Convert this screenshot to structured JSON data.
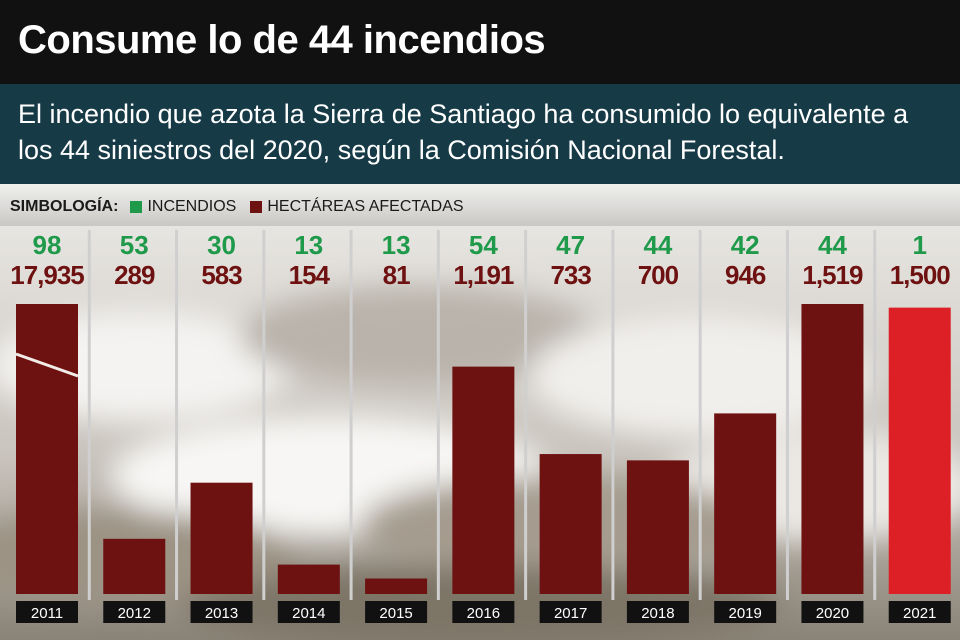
{
  "title": "Consume lo de 44 incendios",
  "subtitle": "El incendio que azota la Sierra de Santiago ha consumido lo equivalente a los 44 siniestros del 2020, según la Comisión Nacional Forestal.",
  "legend": {
    "heading": "SIMBOLOGÍA:",
    "fires_label": "INCENDIOS",
    "hectares_label": "HECTÁREAS AFECTADAS"
  },
  "colors": {
    "fires": "#1f9a4b",
    "hectares": "#6e1111",
    "highlight": "#dc2025",
    "title_band": "#111111",
    "subtitle_band": "#173a47"
  },
  "chart_data": {
    "type": "bar",
    "categories": [
      "2011",
      "2012",
      "2013",
      "2014",
      "2015",
      "2016",
      "2017",
      "2018",
      "2019",
      "2020",
      "2021"
    ],
    "series": [
      {
        "name": "INCENDIOS",
        "values": [
          98,
          53,
          30,
          13,
          13,
          54,
          47,
          44,
          42,
          44,
          1
        ],
        "labels": [
          "98",
          "53",
          "30",
          "13",
          "13",
          "54",
          "47",
          "44",
          "42",
          "44",
          "1"
        ]
      },
      {
        "name": "HECTÁREAS AFECTADAS",
        "values": [
          17935,
          289,
          583,
          154,
          81,
          1191,
          733,
          700,
          946,
          1519,
          1500
        ],
        "labels": [
          "17,935",
          "289",
          "583",
          "154",
          "81",
          "1,191",
          "733",
          "700",
          "946",
          "1,519",
          "1,500"
        ]
      }
    ],
    "bars_show": "HECTÁREAS AFECTADAS",
    "axis_break": "2011",
    "highlight_category": "2021",
    "grid": false
  }
}
